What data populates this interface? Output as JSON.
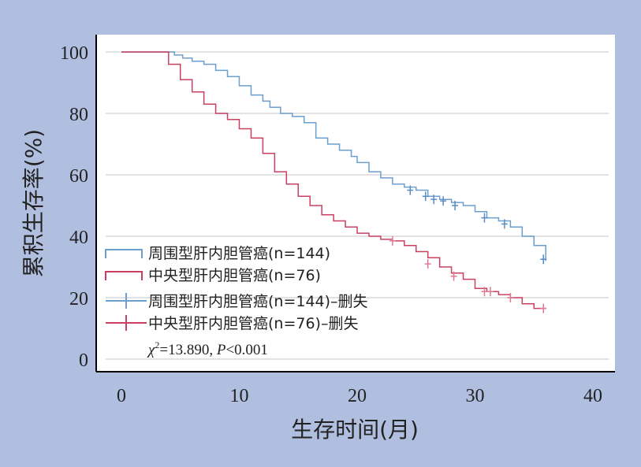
{
  "chart_data": {
    "type": "line",
    "subtype": "kaplan-meier step",
    "xlabel": "生存时间(月)",
    "ylabel": "累积生存率(%)",
    "xlim": [
      0,
      40
    ],
    "ylim": [
      0,
      100
    ],
    "xticks": [
      "0",
      "10",
      "20",
      "30",
      "40"
    ],
    "yticks": [
      "0",
      "20",
      "40",
      "60",
      "80",
      "100"
    ],
    "grid": "horizontal",
    "legend_position": "bottom-left",
    "series": [
      {
        "name": "周围型肝内胆管癌(n=144)",
        "censor_name": "周围型肝内胆管癌(n=144)–删失",
        "color": "#6a9fcf",
        "censor_color": "#5b8cc0",
        "x": [
          0,
          4.5,
          5.2,
          6,
          7,
          8,
          9,
          10,
          11,
          12,
          12.6,
          13.5,
          14.5,
          15.5,
          16.5,
          17.5,
          18.5,
          19.5,
          20,
          21,
          22,
          23,
          24,
          25,
          26,
          27,
          28,
          29,
          30,
          31,
          32,
          33,
          34,
          35,
          36
        ],
        "y": [
          100,
          99,
          98,
          97,
          96,
          94,
          92,
          89,
          86,
          84,
          82,
          80,
          79,
          77,
          72,
          70,
          68,
          66,
          64,
          61,
          59,
          57,
          56,
          55,
          53,
          52,
          51,
          50,
          48,
          46,
          45,
          43,
          40,
          37,
          32
        ],
        "censored": [
          {
            "x": 24.5,
            "y": 55
          },
          {
            "x": 25.8,
            "y": 53
          },
          {
            "x": 26.5,
            "y": 52
          },
          {
            "x": 27.3,
            "y": 51.5
          },
          {
            "x": 28.3,
            "y": 50
          },
          {
            "x": 30.8,
            "y": 46
          },
          {
            "x": 32.5,
            "y": 44
          },
          {
            "x": 35.8,
            "y": 32.5
          }
        ]
      },
      {
        "name": "中央型肝内胆管癌(n=76)",
        "censor_name": "中央型肝内胆管癌(n=76)–删失",
        "color": "#c94060",
        "censor_color": "#e07a93",
        "x": [
          0,
          4,
          5,
          6,
          7,
          8,
          9,
          10,
          11,
          12,
          13,
          14,
          15,
          16,
          17,
          18,
          19,
          20,
          21,
          22,
          23,
          24,
          25,
          26,
          27,
          28,
          29,
          30,
          31,
          32,
          33,
          34,
          35,
          36
        ],
        "y": [
          100,
          96,
          91,
          87,
          83,
          80,
          78,
          75,
          72,
          67,
          61,
          57,
          53,
          50,
          47,
          45,
          43,
          41,
          40,
          39,
          38.5,
          37,
          35,
          33,
          30,
          28,
          26,
          23,
          22,
          21,
          20,
          18,
          16.5,
          16.5
        ],
        "censored": [
          {
            "x": 23,
            "y": 38.5
          },
          {
            "x": 26,
            "y": 31
          },
          {
            "x": 28.2,
            "y": 27
          },
          {
            "x": 30.8,
            "y": 22
          },
          {
            "x": 31.3,
            "y": 22
          },
          {
            "x": 33,
            "y": 20
          },
          {
            "x": 35.8,
            "y": 16.5
          }
        ]
      }
    ],
    "annotation": {
      "chi_symbol": "χ",
      "chi_sup": "2",
      "chi_rest": "=13.890, ",
      "p_italic": "P",
      "p_rest": "<0.001"
    }
  }
}
